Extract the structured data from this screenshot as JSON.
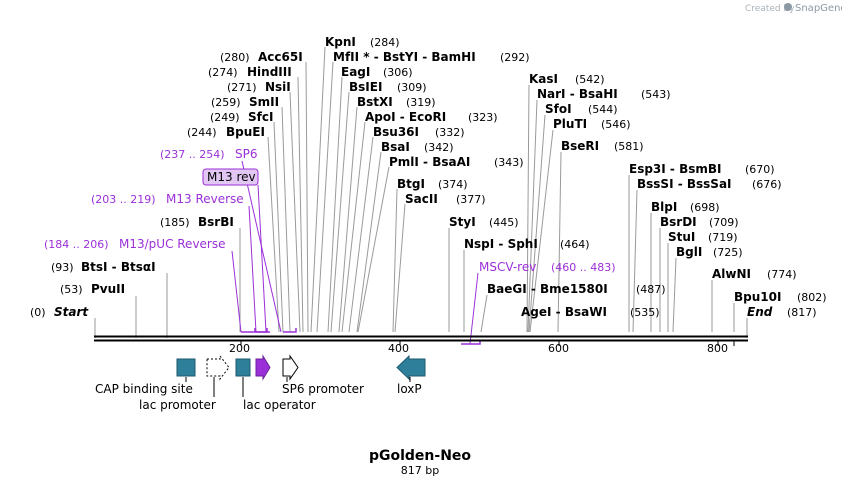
{
  "credit": {
    "prefix": "Created by",
    "brand": "SnapGene"
  },
  "plasmid": {
    "name": "pGolden-Neo",
    "length": "817 bp"
  },
  "ruler": {
    "ticks": [
      "200",
      "400",
      "600",
      "800"
    ]
  },
  "sites": [
    {
      "name": "KpnI",
      "pos": "(284)"
    },
    {
      "name": "Acc65I",
      "pos": "(280)"
    },
    {
      "name": "MfII * - BstYI - BamHI",
      "pos": "(292)"
    },
    {
      "name": "HindIII",
      "pos": "(274)"
    },
    {
      "name": "EagI",
      "pos": "(306)"
    },
    {
      "name": "NsiI",
      "pos": "(271)"
    },
    {
      "name": "BsIEI",
      "pos": "(309)"
    },
    {
      "name": "KasI",
      "pos": "(542)"
    },
    {
      "name": "SmII",
      "pos": "(259)"
    },
    {
      "name": "BstXI",
      "pos": "(319)"
    },
    {
      "name": "NarI - BsaHI",
      "pos": "(543)"
    },
    {
      "name": "SfcI",
      "pos": "(249)"
    },
    {
      "name": "ApoI - EcoRI",
      "pos": "(323)"
    },
    {
      "name": "SfoI",
      "pos": "(544)"
    },
    {
      "name": "BpuEI",
      "pos": "(244)"
    },
    {
      "name": "Bsu36I",
      "pos": "(332)"
    },
    {
      "name": "PluTI",
      "pos": "(546)"
    },
    {
      "name": "BsaI",
      "pos": "(342)"
    },
    {
      "name": "BseRI",
      "pos": "(581)"
    },
    {
      "name": "PmlI - BsaAI",
      "pos": "(343)"
    },
    {
      "name": "Esp3I - BsmBI",
      "pos": "(670)"
    },
    {
      "name": "BtgI",
      "pos": "(374)"
    },
    {
      "name": "BssSI - BssSaI",
      "pos": "(676)"
    },
    {
      "name": "SacII",
      "pos": "(377)"
    },
    {
      "name": "BsrBI",
      "pos": "(185)"
    },
    {
      "name": "BlpI",
      "pos": "(698)"
    },
    {
      "name": "StyI",
      "pos": "(445)"
    },
    {
      "name": "BsrDI",
      "pos": "(709)"
    },
    {
      "name": "StuI",
      "pos": "(719)"
    },
    {
      "name": "NspI - SphI",
      "pos": "(464)"
    },
    {
      "name": "BglI",
      "pos": "(725)"
    },
    {
      "name": "BtsI - BtsαI",
      "pos": "(93)"
    },
    {
      "name": "AlwNI",
      "pos": "(774)"
    },
    {
      "name": "PvuII",
      "pos": "(53)"
    },
    {
      "name": "BaeGI - Bme1580I",
      "pos": "(487)"
    },
    {
      "name": "Bpu10I",
      "pos": "(802)"
    },
    {
      "name": "AgeI - BsaWI",
      "pos": "(535)"
    },
    {
      "name": "Start",
      "pos": "(0)"
    },
    {
      "name": "End",
      "pos": "(817)"
    }
  ],
  "primers": [
    {
      "name": "SP6",
      "range": "(237 .. 254)"
    },
    {
      "name": "M13 Reverse",
      "range": "(203 .. 219)"
    },
    {
      "name": "M13/pUC Reverse",
      "range": "(184 .. 206)"
    },
    {
      "name": "MSCV-rev",
      "range": "(460 .. 483)"
    }
  ],
  "highlight_primer": {
    "name": "M13 rev"
  },
  "features": [
    {
      "name": "CAP binding site",
      "color": "#2e7f99"
    },
    {
      "name": "lac promoter",
      "color": "#ffffff"
    },
    {
      "name": "lac operator",
      "color": "#2e7f99"
    },
    {
      "name": "SP6 promoter",
      "color": "#ffffff"
    },
    {
      "name": "loxP",
      "color": "#2e7f99"
    },
    {
      "name": "M13 rev",
      "color": "#9b30d9"
    }
  ]
}
